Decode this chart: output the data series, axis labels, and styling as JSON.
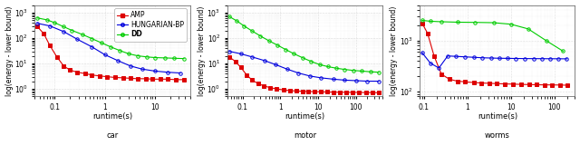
{
  "fig_width": 6.4,
  "fig_height": 1.71,
  "dpi": 100,
  "background_color": "#ffffff",
  "subplots": [
    {
      "title": "car",
      "xlabel": "runtime(s)",
      "ylabel": "log(energy - lower bound)",
      "xscale": "log",
      "yscale": "log",
      "xlim": [
        0.04,
        50
      ],
      "ylim": [
        0.5,
        2000
      ],
      "yticks": [
        1,
        10,
        100,
        1000
      ],
      "xticks": [
        0.1,
        1,
        10
      ],
      "series": [
        {
          "label": "AMP",
          "color": "#dd0000",
          "marker": "s",
          "markersize": 2.5,
          "linewidth": 0.8,
          "x": [
            0.045,
            0.06,
            0.08,
            0.11,
            0.15,
            0.2,
            0.28,
            0.4,
            0.55,
            0.8,
            1.1,
            1.6,
            2.3,
            3.2,
            4.5,
            6.5,
            9,
            13,
            18,
            26,
            38
          ],
          "y": [
            280,
            150,
            50,
            18,
            8,
            5.5,
            4.5,
            4.0,
            3.5,
            3.2,
            3.0,
            2.8,
            2.7,
            2.6,
            2.5,
            2.5,
            2.4,
            2.4,
            2.4,
            2.3,
            2.3
          ]
        },
        {
          "label": "HUNGARIAN-BP",
          "color": "#0000dd",
          "marker": "o",
          "markersize": 2.5,
          "linewidth": 0.8,
          "x": [
            0.045,
            0.08,
            0.15,
            0.28,
            0.55,
            1.0,
            1.8,
            3.2,
            5.5,
            10,
            18,
            32
          ],
          "y": [
            380,
            300,
            180,
            90,
            45,
            22,
            13,
            8,
            6,
            5,
            4.5,
            4.2
          ]
        },
        {
          "label": "DD",
          "color": "#00cc00",
          "marker": "o",
          "markersize": 2.5,
          "linewidth": 0.8,
          "x": [
            0.045,
            0.07,
            0.1,
            0.15,
            0.22,
            0.35,
            0.55,
            0.85,
            1.3,
            2.0,
            3.0,
            4.5,
            7,
            10,
            16,
            24,
            38
          ],
          "y": [
            620,
            520,
            400,
            280,
            200,
            140,
            95,
            65,
            45,
            32,
            24,
            20,
            18,
            17,
            16.5,
            16,
            15.5
          ]
        }
      ],
      "legend": true
    },
    {
      "title": "motor",
      "xlabel": "runtime(s)",
      "ylabel": "log(energy - lower bound)",
      "xscale": "log",
      "yscale": "log",
      "xlim": [
        0.04,
        500
      ],
      "ylim": [
        0.5,
        2000
      ],
      "yticks": [
        1,
        10,
        100,
        1000
      ],
      "xticks": [
        0.1,
        1,
        10,
        100
      ],
      "series": [
        {
          "label": "AMP",
          "color": "#dd0000",
          "marker": "s",
          "markersize": 2.5,
          "linewidth": 0.8,
          "x": [
            0.045,
            0.065,
            0.09,
            0.13,
            0.18,
            0.26,
            0.37,
            0.55,
            0.8,
            1.2,
            1.8,
            2.6,
            3.8,
            5.5,
            8,
            12,
            17,
            25,
            37,
            55,
            80,
            120,
            180,
            270,
            400
          ],
          "y": [
            18,
            12,
            7,
            3.5,
            2.2,
            1.6,
            1.3,
            1.1,
            1.0,
            0.9,
            0.85,
            0.82,
            0.8,
            0.78,
            0.77,
            0.76,
            0.75,
            0.74,
            0.73,
            0.73,
            0.72,
            0.72,
            0.71,
            0.71,
            0.7
          ]
        },
        {
          "label": "HUNGARIAN-BP",
          "color": "#0000dd",
          "marker": "o",
          "markersize": 2.5,
          "linewidth": 0.8,
          "x": [
            0.045,
            0.09,
            0.18,
            0.38,
            0.75,
            1.5,
            3.0,
            6.0,
            12,
            25,
            50,
            100,
            200,
            400
          ],
          "y": [
            30,
            24,
            18,
            13,
            9,
            6,
            4.2,
            3.2,
            2.7,
            2.4,
            2.2,
            2.1,
            2.0,
            2.0
          ]
        },
        {
          "label": "DD",
          "color": "#00cc00",
          "marker": "o",
          "markersize": 2.5,
          "linewidth": 0.8,
          "x": [
            0.045,
            0.07,
            0.11,
            0.18,
            0.3,
            0.5,
            0.85,
            1.4,
            2.3,
            3.8,
            6.5,
            11,
            18,
            30,
            50,
            85,
            140,
            240,
            400
          ],
          "y": [
            700,
            480,
            300,
            190,
            120,
            78,
            52,
            35,
            24,
            17,
            12,
            9,
            7.5,
            6.5,
            5.8,
            5.3,
            5.0,
            4.7,
            4.5
          ]
        }
      ],
      "legend": false
    },
    {
      "title": "worms",
      "xlabel": "runtime(s)",
      "ylabel": "log(energy - lower bound)",
      "xscale": "log",
      "yscale": "log",
      "xlim": [
        0.08,
        300
      ],
      "ylim": [
        80,
        5000
      ],
      "yticks": [
        100,
        1000
      ],
      "xticks": [
        0.1,
        1,
        10,
        100
      ],
      "series": [
        {
          "label": "AMP",
          "color": "#dd0000",
          "marker": "s",
          "markersize": 2.5,
          "linewidth": 0.8,
          "x": [
            0.09,
            0.12,
            0.17,
            0.25,
            0.38,
            0.58,
            0.88,
            1.4,
            2.1,
            3.2,
            4.8,
            7.3,
            11,
            17,
            26,
            39,
            59,
            88,
            133,
            200
          ],
          "y": [
            2200,
            1400,
            500,
            220,
            175,
            160,
            155,
            150,
            147,
            145,
            143,
            141,
            140,
            138,
            137,
            136,
            135,
            135,
            134,
            133
          ]
        },
        {
          "label": "HUNGARIAN-BP",
          "color": "#0000dd",
          "marker": "o",
          "markersize": 2.5,
          "linewidth": 0.8,
          "x": [
            0.09,
            0.14,
            0.22,
            0.35,
            0.55,
            0.88,
            1.4,
            2.2,
            3.5,
            5.5,
            8.5,
            13,
            21,
            33,
            51,
            80,
            125,
            195
          ],
          "y": [
            580,
            360,
            290,
            500,
            490,
            480,
            470,
            460,
            455,
            450,
            448,
            446,
            444,
            443,
            442,
            441,
            440,
            439
          ]
        },
        {
          "label": "DD",
          "color": "#00cc00",
          "marker": "o",
          "markersize": 2.5,
          "linewidth": 0.8,
          "x": [
            0.09,
            0.14,
            0.25,
            0.6,
            1.5,
            4,
            10,
            25,
            65,
            160
          ],
          "y": [
            2500,
            2400,
            2350,
            2300,
            2280,
            2250,
            2100,
            1700,
            1000,
            620
          ]
        }
      ],
      "legend": false
    }
  ]
}
